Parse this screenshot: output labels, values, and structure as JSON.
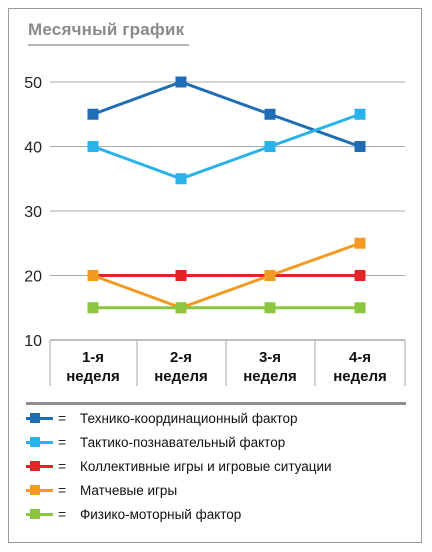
{
  "chart_data": {
    "type": "line",
    "title": "Месячный график",
    "categories": [
      "1-я неделя",
      "2-я неделя",
      "3-я неделя",
      "4-я неделя"
    ],
    "category_lines": [
      [
        "1-я",
        "неделя"
      ],
      [
        "2-я",
        "неделя"
      ],
      [
        "3-я",
        "неделя"
      ],
      [
        "4-я",
        "неделя"
      ]
    ],
    "yticks": [
      10,
      20,
      30,
      40,
      50
    ],
    "ylim": [
      10,
      50
    ],
    "grid": true,
    "legend_position": "bottom",
    "series": [
      {
        "name": "Технико-координационный фактор",
        "color": "#1f6db5",
        "values": [
          45,
          50,
          45,
          40
        ]
      },
      {
        "name": "Тактико-познавательный фактор",
        "color": "#29b3ea",
        "values": [
          40,
          35,
          40,
          45
        ]
      },
      {
        "name": "Коллективные игры и игровые ситуации",
        "color": "#e32424",
        "values": [
          20,
          20,
          20,
          20
        ]
      },
      {
        "name": "Матчевые игры",
        "color": "#f39a22",
        "values": [
          20,
          15,
          20,
          25
        ]
      },
      {
        "name": "Физико-моторный фактор",
        "color": "#8cc63f",
        "values": [
          15,
          15,
          15,
          15
        ]
      }
    ]
  },
  "legend_equals": "="
}
